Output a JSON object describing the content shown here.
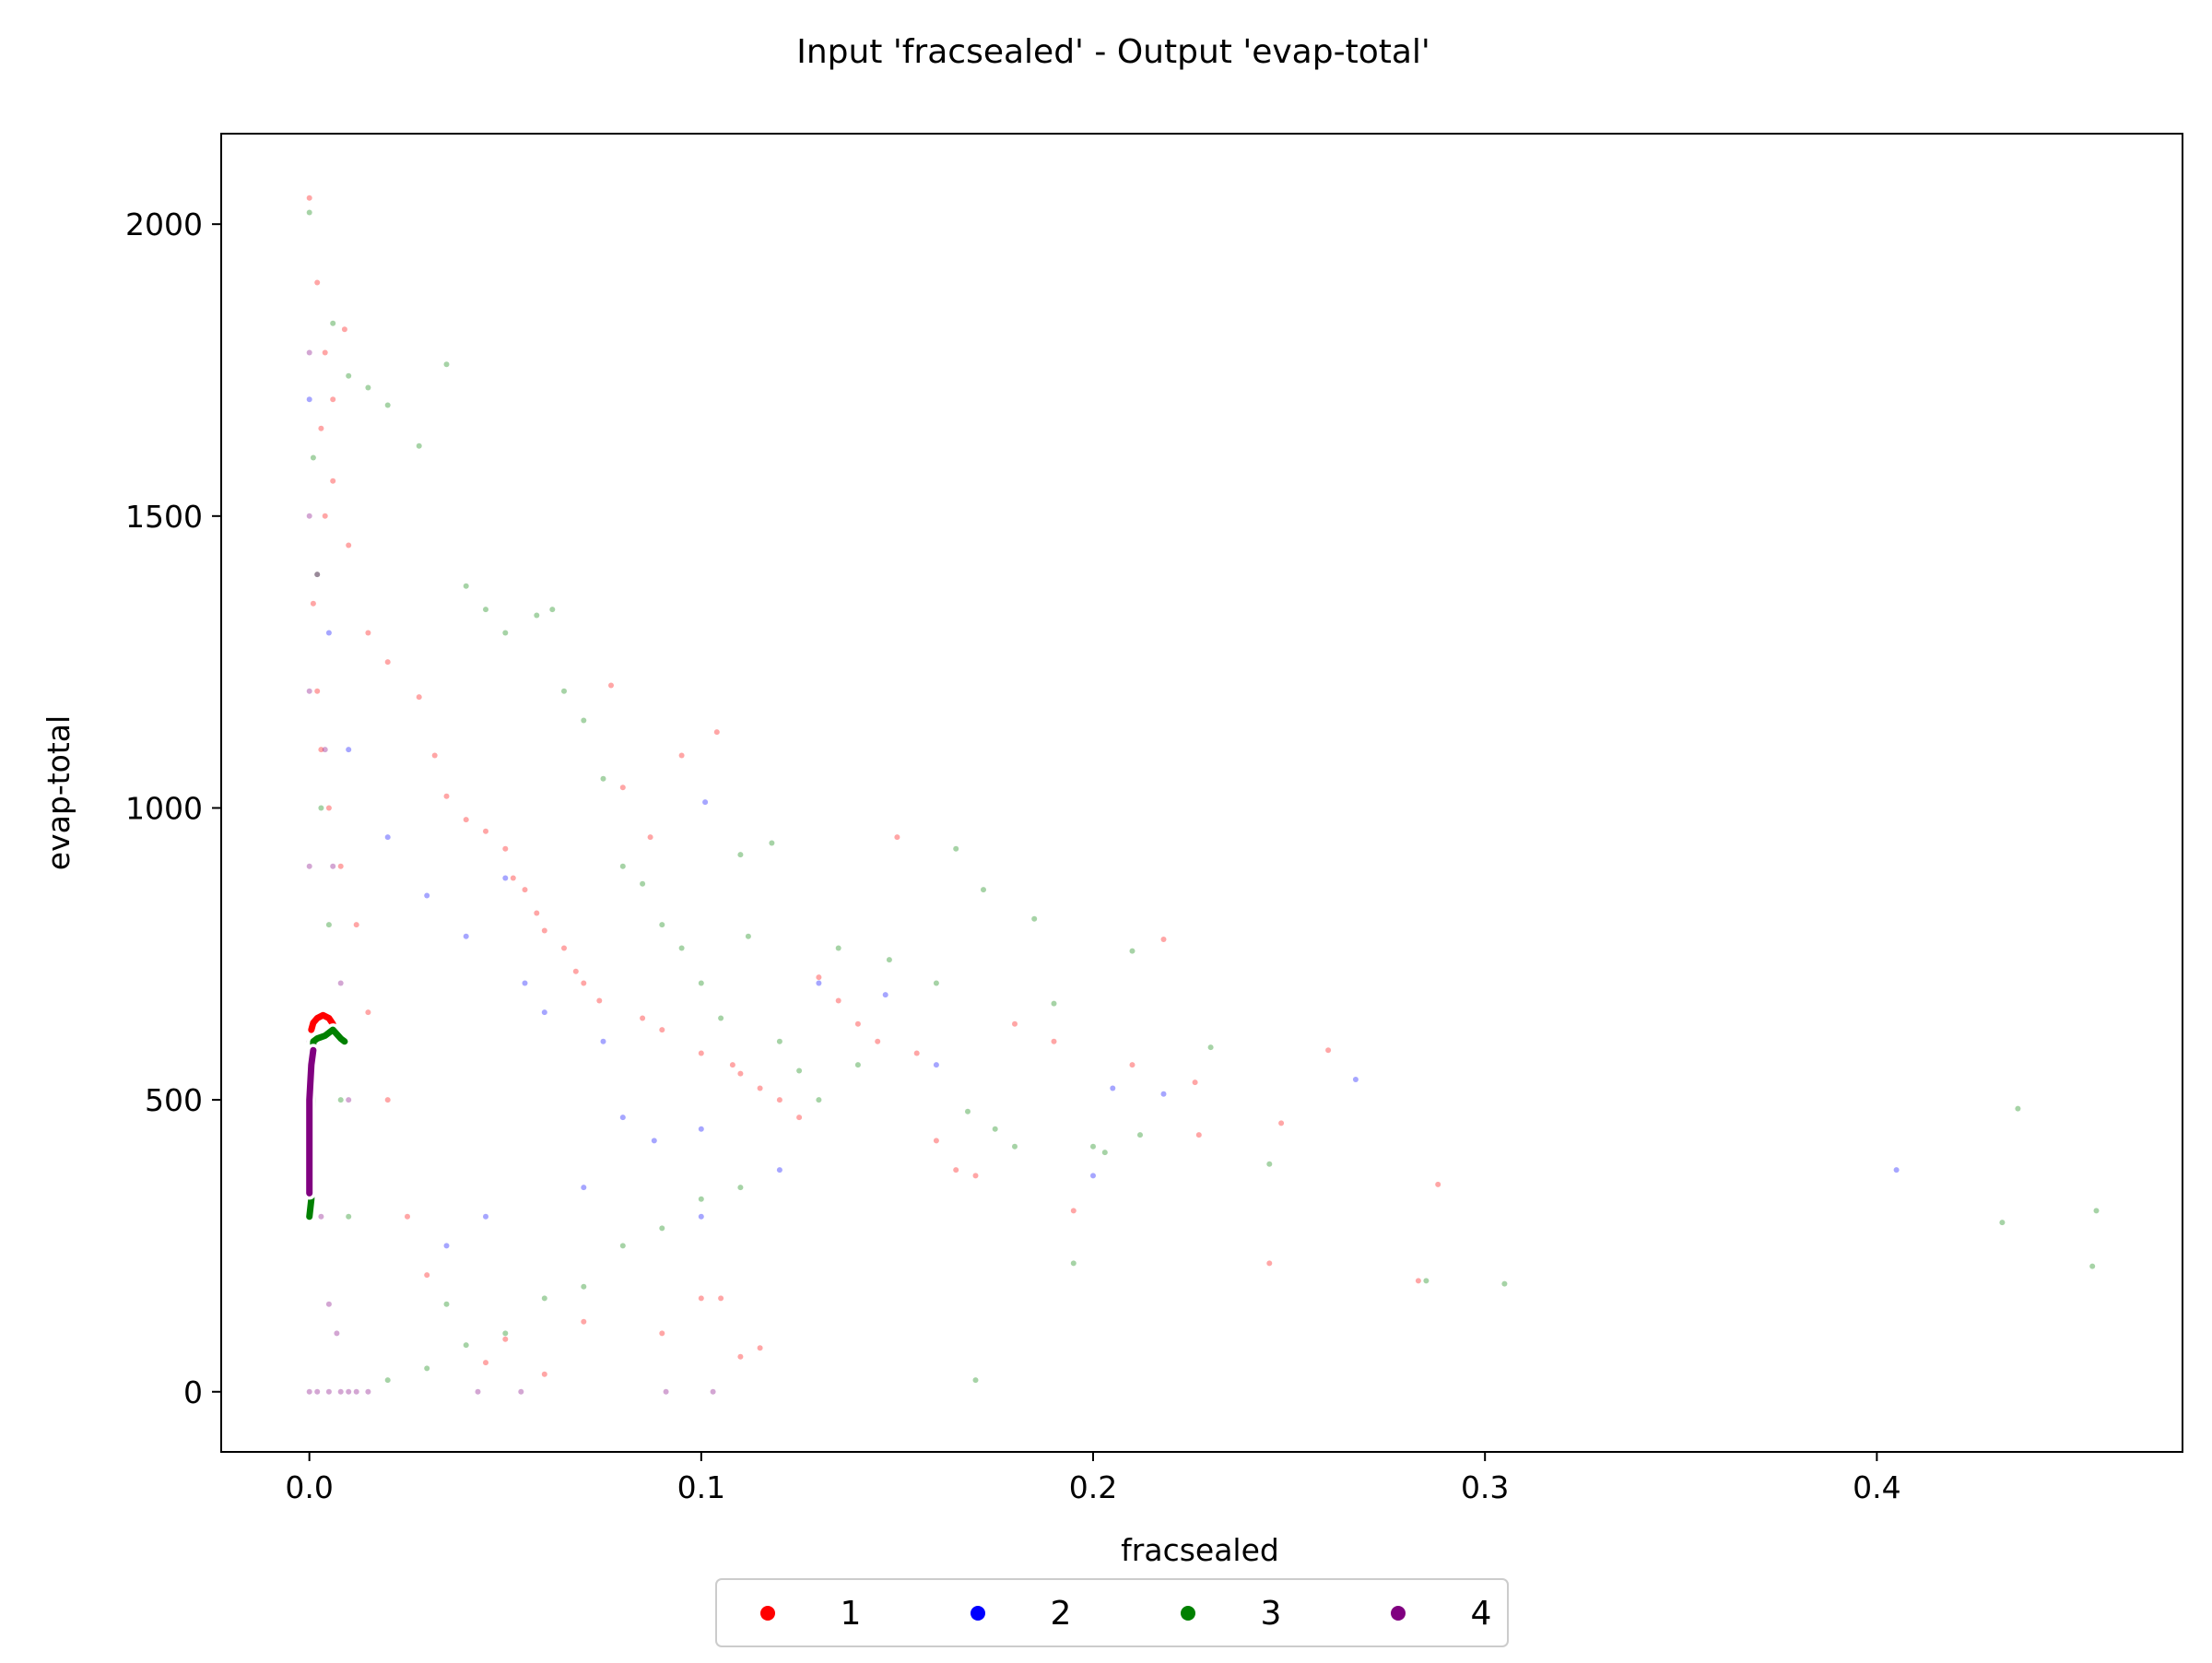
{
  "chart_data": {
    "type": "scatter",
    "title": "Input 'fracsealed' - Output 'evap-total'",
    "xlabel": "fracsealed",
    "ylabel": "evap-total",
    "xlim": [
      -0.0225,
      0.478
    ],
    "ylim": [
      -103,
      2155
    ],
    "xticks": [
      0.0,
      0.1,
      0.2,
      0.3,
      0.4
    ],
    "xtick_labels": [
      "0.0",
      "0.1",
      "0.2",
      "0.3",
      "0.4"
    ],
    "yticks": [
      0,
      500,
      1000,
      1500,
      2000
    ],
    "ytick_labels": [
      "0",
      "500",
      "1000",
      "1500",
      "2000"
    ],
    "grid": false,
    "legend": {
      "placement": "bottom-center",
      "entries": [
        "1",
        "2",
        "3",
        "4"
      ]
    },
    "series": [
      {
        "name": "1",
        "color": "#ff0000",
        "points": [
          [
            0.0,
            2045
          ],
          [
            0.002,
            1900
          ],
          [
            0.004,
            1780
          ],
          [
            0.003,
            1650
          ],
          [
            0.006,
            1560
          ],
          [
            0.01,
            1450
          ],
          [
            0.015,
            1300
          ],
          [
            0.02,
            1250
          ],
          [
            0.028,
            1190
          ],
          [
            0.032,
            1090
          ],
          [
            0.035,
            1020
          ],
          [
            0.04,
            980
          ],
          [
            0.045,
            960
          ],
          [
            0.05,
            930
          ],
          [
            0.052,
            880
          ],
          [
            0.055,
            860
          ],
          [
            0.058,
            820
          ],
          [
            0.06,
            790
          ],
          [
            0.065,
            760
          ],
          [
            0.068,
            720
          ],
          [
            0.07,
            700
          ],
          [
            0.074,
            670
          ],
          [
            0.077,
            1210
          ],
          [
            0.08,
            1035
          ],
          [
            0.085,
            640
          ],
          [
            0.087,
            950
          ],
          [
            0.09,
            620
          ],
          [
            0.095,
            1090
          ],
          [
            0.1,
            580
          ],
          [
            0.104,
            1130
          ],
          [
            0.108,
            560
          ],
          [
            0.11,
            545
          ],
          [
            0.115,
            520
          ],
          [
            0.12,
            500
          ],
          [
            0.125,
            470
          ],
          [
            0.13,
            710
          ],
          [
            0.135,
            670
          ],
          [
            0.14,
            630
          ],
          [
            0.145,
            600
          ],
          [
            0.15,
            950
          ],
          [
            0.155,
            580
          ],
          [
            0.16,
            430
          ],
          [
            0.165,
            380
          ],
          [
            0.17,
            370
          ],
          [
            0.18,
            630
          ],
          [
            0.19,
            600
          ],
          [
            0.195,
            310
          ],
          [
            0.21,
            560
          ],
          [
            0.218,
            775
          ],
          [
            0.226,
            530
          ],
          [
            0.227,
            440
          ],
          [
            0.245,
            220
          ],
          [
            0.248,
            460
          ],
          [
            0.26,
            585
          ],
          [
            0.283,
            190
          ],
          [
            0.288,
            355
          ],
          [
            0.1,
            160
          ],
          [
            0.105,
            160
          ],
          [
            0.11,
            60
          ],
          [
            0.115,
            75
          ],
          [
            0.09,
            100
          ],
          [
            0.07,
            120
          ],
          [
            0.06,
            30
          ],
          [
            0.05,
            90
          ],
          [
            0.045,
            50
          ],
          [
            0.03,
            200
          ],
          [
            0.025,
            300
          ],
          [
            0.02,
            500
          ],
          [
            0.015,
            650
          ],
          [
            0.012,
            800
          ],
          [
            0.008,
            900
          ],
          [
            0.005,
            1000
          ],
          [
            0.003,
            1100
          ],
          [
            0.002,
            1200
          ],
          [
            0.001,
            1350
          ],
          [
            0.004,
            1500
          ],
          [
            0.006,
            1700
          ],
          [
            0.009,
            1820
          ]
        ],
        "line": [
          [
            0.0005,
            620
          ],
          [
            0.001,
            632
          ],
          [
            0.002,
            640
          ],
          [
            0.0035,
            645
          ],
          [
            0.005,
            640
          ],
          [
            0.006,
            630
          ]
        ]
      },
      {
        "name": "2",
        "color": "#0000ff",
        "points": [
          [
            0.101,
            1010
          ],
          [
            0.0,
            1700
          ],
          [
            0.005,
            1300
          ],
          [
            0.01,
            1100
          ],
          [
            0.02,
            950
          ],
          [
            0.03,
            850
          ],
          [
            0.04,
            780
          ],
          [
            0.05,
            880
          ],
          [
            0.055,
            700
          ],
          [
            0.06,
            650
          ],
          [
            0.075,
            600
          ],
          [
            0.08,
            470
          ],
          [
            0.088,
            430
          ],
          [
            0.1,
            450
          ],
          [
            0.12,
            380
          ],
          [
            0.13,
            700
          ],
          [
            0.147,
            680
          ],
          [
            0.16,
            560
          ],
          [
            0.2,
            370
          ],
          [
            0.205,
            520
          ],
          [
            0.218,
            510
          ],
          [
            0.267,
            535
          ],
          [
            0.405,
            380
          ],
          [
            0.035,
            250
          ],
          [
            0.045,
            300
          ],
          [
            0.07,
            350
          ],
          [
            0.1,
            300
          ]
        ]
      },
      {
        "name": "3",
        "color": "#008000",
        "points": [
          [
            0.0,
            2020
          ],
          [
            0.006,
            1830
          ],
          [
            0.01,
            1740
          ],
          [
            0.015,
            1720
          ],
          [
            0.02,
            1690
          ],
          [
            0.028,
            1620
          ],
          [
            0.035,
            1760
          ],
          [
            0.04,
            1380
          ],
          [
            0.045,
            1340
          ],
          [
            0.05,
            1300
          ],
          [
            0.058,
            1330
          ],
          [
            0.062,
            1340
          ],
          [
            0.065,
            1200
          ],
          [
            0.07,
            1150
          ],
          [
            0.075,
            1050
          ],
          [
            0.08,
            900
          ],
          [
            0.085,
            870
          ],
          [
            0.09,
            800
          ],
          [
            0.095,
            760
          ],
          [
            0.1,
            700
          ],
          [
            0.105,
            640
          ],
          [
            0.11,
            920
          ],
          [
            0.112,
            780
          ],
          [
            0.118,
            940
          ],
          [
            0.12,
            600
          ],
          [
            0.125,
            550
          ],
          [
            0.13,
            500
          ],
          [
            0.135,
            760
          ],
          [
            0.14,
            560
          ],
          [
            0.148,
            740
          ],
          [
            0.16,
            700
          ],
          [
            0.165,
            930
          ],
          [
            0.168,
            480
          ],
          [
            0.17,
            20
          ],
          [
            0.172,
            860
          ],
          [
            0.175,
            450
          ],
          [
            0.18,
            420
          ],
          [
            0.185,
            810
          ],
          [
            0.19,
            665
          ],
          [
            0.195,
            220
          ],
          [
            0.2,
            420
          ],
          [
            0.203,
            410
          ],
          [
            0.21,
            755
          ],
          [
            0.212,
            440
          ],
          [
            0.23,
            590
          ],
          [
            0.245,
            390
          ],
          [
            0.285,
            190
          ],
          [
            0.305,
            185
          ],
          [
            0.432,
            290
          ],
          [
            0.436,
            485
          ],
          [
            0.455,
            215
          ],
          [
            0.456,
            310
          ],
          [
            0.035,
            150
          ],
          [
            0.04,
            80
          ],
          [
            0.05,
            100
          ],
          [
            0.06,
            160
          ],
          [
            0.07,
            180
          ],
          [
            0.08,
            250
          ],
          [
            0.09,
            280
          ],
          [
            0.1,
            330
          ],
          [
            0.11,
            350
          ],
          [
            0.03,
            40
          ],
          [
            0.02,
            20
          ],
          [
            0.01,
            300
          ],
          [
            0.008,
            500
          ],
          [
            0.005,
            800
          ],
          [
            0.003,
            1000
          ],
          [
            0.002,
            1400
          ],
          [
            0.001,
            1600
          ]
        ],
        "line": [
          [
            0.0,
            300
          ],
          [
            0.0005,
            330
          ],
          [
            0.001,
            600
          ],
          [
            0.002,
            605
          ],
          [
            0.004,
            610
          ],
          [
            0.006,
            620
          ],
          [
            0.008,
            605
          ],
          [
            0.009,
            600
          ]
        ]
      },
      {
        "name": "4",
        "color": "#800080",
        "points": [
          [
            0.0,
            1780
          ],
          [
            0.0,
            1500
          ],
          [
            0.0,
            1200
          ],
          [
            0.0,
            900
          ],
          [
            0.0,
            600
          ],
          [
            0.0,
            300
          ],
          [
            0.0,
            0
          ],
          [
            0.002,
            0
          ],
          [
            0.005,
            0
          ],
          [
            0.008,
            0
          ],
          [
            0.01,
            0
          ],
          [
            0.012,
            0
          ],
          [
            0.015,
            0
          ],
          [
            0.043,
            0
          ],
          [
            0.054,
            0
          ],
          [
            0.091,
            0
          ],
          [
            0.103,
            0
          ],
          [
            0.002,
            1400
          ],
          [
            0.004,
            1100
          ],
          [
            0.006,
            900
          ],
          [
            0.008,
            700
          ],
          [
            0.01,
            500
          ],
          [
            0.003,
            300
          ],
          [
            0.005,
            150
          ],
          [
            0.007,
            100
          ]
        ],
        "line": [
          [
            0.0,
            340
          ],
          [
            0.0,
            400
          ],
          [
            0.0,
            500
          ],
          [
            0.0005,
            560
          ],
          [
            0.001,
            585
          ]
        ]
      }
    ]
  }
}
